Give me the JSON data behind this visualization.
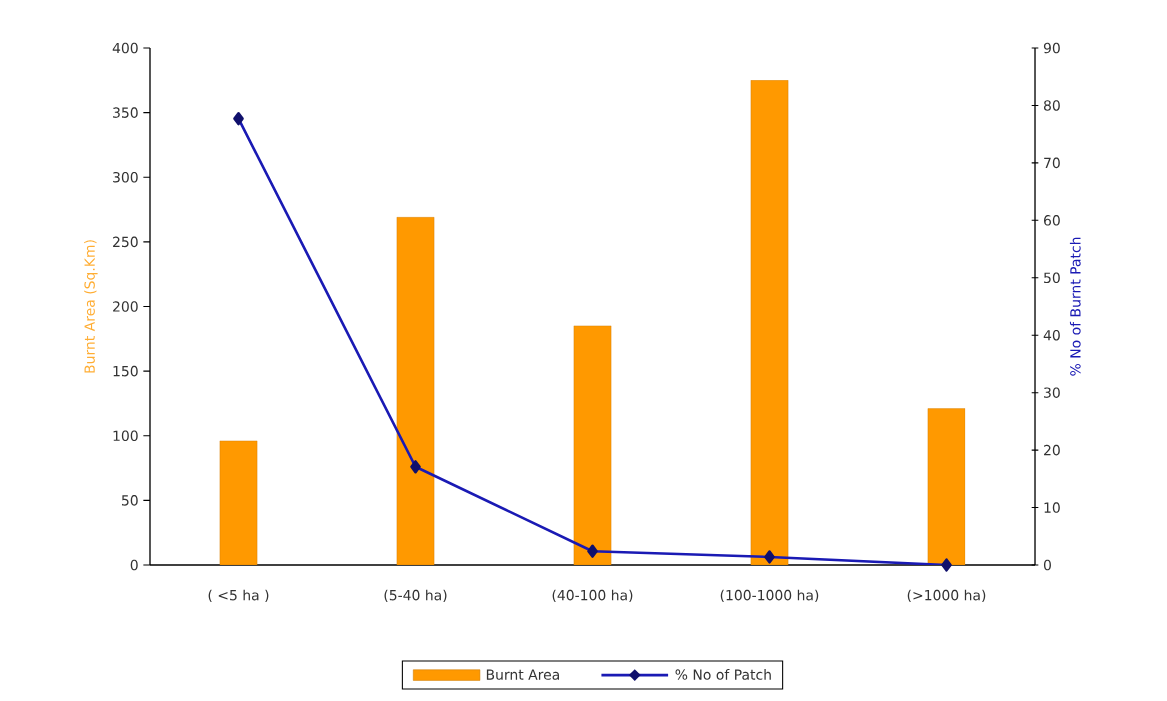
{
  "chart_data": {
    "type": "bar",
    "categories": [
      "( <5 ha )",
      "(5-40 ha)",
      "(40-100 ha)",
      "(100-1000 ha)",
      "(>1000 ha)"
    ],
    "ylabel": "Burnt Area (Sq.Km)",
    "y2label": "% No of Burnt Patch",
    "ylim": [
      0,
      400
    ],
    "yticks": [
      0,
      50,
      100,
      150,
      200,
      250,
      300,
      350,
      400
    ],
    "y2lim": [
      0,
      90
    ],
    "y2ticks": [
      0,
      10,
      20,
      30,
      40,
      50,
      60,
      70,
      80,
      90
    ],
    "legend": "bottom",
    "marker": "diamond",
    "line_style": "solid",
    "series": [
      {
        "name": "Burnt Area",
        "color": "#ff9900",
        "values": [
          96,
          269,
          185,
          375,
          121
        ]
      },
      {
        "name": "% No of Patch",
        "type": "line",
        "axis": "y2",
        "color": "#1a1ab4",
        "values": [
          77.7,
          17.1,
          2.4,
          1.4,
          0
        ]
      }
    ]
  }
}
